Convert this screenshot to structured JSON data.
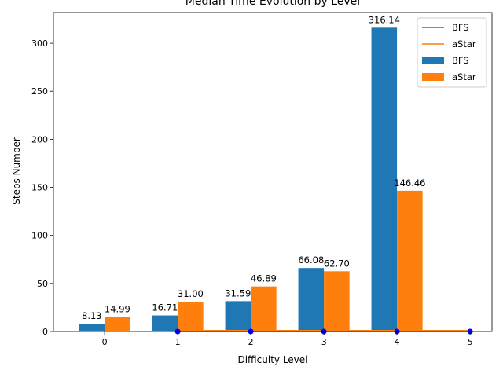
{
  "chart_data": {
    "type": "bar",
    "title": "Median Time Evolution by Level",
    "xlabel": "Difficulty Level",
    "ylabel": "Steps Number",
    "categories": [
      "0",
      "1",
      "2",
      "3",
      "4"
    ],
    "series": [
      {
        "name": "BFS",
        "values": [
          8.13,
          16.71,
          31.59,
          66.08,
          316.14
        ],
        "labels": [
          "8.13",
          "16.71",
          "31.59",
          "66.08",
          "316.14"
        ],
        "color": "#1f77b4"
      },
      {
        "name": "aStar",
        "values": [
          14.99,
          31.0,
          46.89,
          62.7,
          146.46
        ],
        "labels": [
          "14.99",
          "31.00",
          "46.89",
          "62.70",
          "146.46"
        ],
        "color": "#ff7f0e"
      }
    ],
    "lines": [
      {
        "name": "BFS",
        "x": [
          1,
          2,
          3,
          4,
          5
        ],
        "y": [
          0,
          0,
          0,
          0,
          0
        ],
        "color": "#1f77b4"
      },
      {
        "name": "aStar",
        "x": [
          1,
          2,
          3,
          4,
          5
        ],
        "y": [
          1,
          1,
          1,
          1,
          1
        ],
        "color": "#ff7f0e"
      }
    ],
    "markers": {
      "x": [
        1,
        2,
        3,
        4,
        5
      ],
      "y": [
        0,
        0,
        0,
        0,
        0
      ],
      "color": "#0000ff"
    },
    "xticks": [
      "0",
      "1",
      "2",
      "3",
      "4",
      "5"
    ],
    "yticks": [
      "0",
      "50",
      "100",
      "150",
      "200",
      "250",
      "300"
    ],
    "xlim": [
      -0.7,
      5.3
    ],
    "ylim": [
      0,
      331.95
    ],
    "grid": false,
    "legend": {
      "placement": "top-right",
      "entries": [
        "BFS",
        "aStar",
        "BFS",
        "aStar"
      ]
    }
  }
}
